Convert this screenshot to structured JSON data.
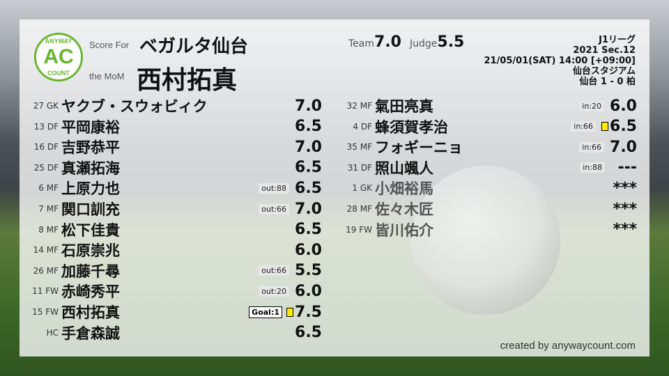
{
  "header": {
    "score_for_label": "Score For",
    "team": "ベガルタ仙台",
    "mom_label": "the MoM",
    "mom": "西村拓真",
    "team_label": "Team",
    "team_score": "7.0",
    "judge_label": "Judge",
    "judge_score": "5.5",
    "logo": {
      "top": "ANYWAY",
      "center": "AC",
      "bottom": "COUNT",
      "color": "#6ab531"
    }
  },
  "match": {
    "league": "J1リーグ",
    "section": "2021 Sec.12",
    "datetime": "21/05/01(SAT) 14:00 [+09:00]",
    "venue": "仙台スタジアム",
    "result": "仙台 1 - 0 柏"
  },
  "left": [
    {
      "num": "27 GK",
      "name": "ヤクブ・スウォビィク",
      "tag": "",
      "rating": "7.0"
    },
    {
      "num": "13 DF",
      "name": "平岡康裕",
      "tag": "",
      "rating": "6.5"
    },
    {
      "num": "16 DF",
      "name": "吉野恭平",
      "tag": "",
      "rating": "7.0"
    },
    {
      "num": "25 DF",
      "name": "真瀬拓海",
      "tag": "",
      "rating": "6.5"
    },
    {
      "num": "6 MF",
      "name": "上原力也",
      "tag": "out:88",
      "rating": "6.5"
    },
    {
      "num": "7 MF",
      "name": "関口訓充",
      "tag": "out:66",
      "rating": "7.0"
    },
    {
      "num": "8 MF",
      "name": "松下佳貴",
      "tag": "",
      "rating": "6.5"
    },
    {
      "num": "14 MF",
      "name": "石原崇兆",
      "tag": "",
      "rating": "6.0"
    },
    {
      "num": "26 MF",
      "name": "加藤千尋",
      "tag": "out:66",
      "rating": "5.5"
    },
    {
      "num": "11 FW",
      "name": "赤崎秀平",
      "tag": "out:20",
      "rating": "6.0"
    },
    {
      "num": "15 FW",
      "name": "西村拓真",
      "tag": "",
      "goal": "Goal:1",
      "yellow": true,
      "rating": "7.5"
    },
    {
      "num": "HC",
      "name": "手倉森誠",
      "tag": "",
      "rating": "6.5"
    }
  ],
  "right": [
    {
      "num": "32 MF",
      "name": "氣田亮真",
      "tag": "in:20",
      "rating": "6.0"
    },
    {
      "num": "4 DF",
      "name": "蜂須賀孝治",
      "tag": "in:66",
      "yellow": true,
      "rating": "6.5"
    },
    {
      "num": "35 MF",
      "name": "フォギーニョ",
      "tag": "in:66",
      "rating": "7.0"
    },
    {
      "num": "31 DF",
      "name": "照山颯人",
      "tag": "in:88",
      "rating": "---"
    },
    {
      "num": "1 GK",
      "name": "小畑裕馬",
      "tag": "",
      "rating": "***",
      "unused": true
    },
    {
      "num": "28 MF",
      "name": "佐々木匠",
      "tag": "",
      "rating": "***",
      "unused": true
    },
    {
      "num": "19 FW",
      "name": "皆川佑介",
      "tag": "",
      "rating": "***",
      "unused": true
    }
  ],
  "credit": "created by anywaycount.com"
}
